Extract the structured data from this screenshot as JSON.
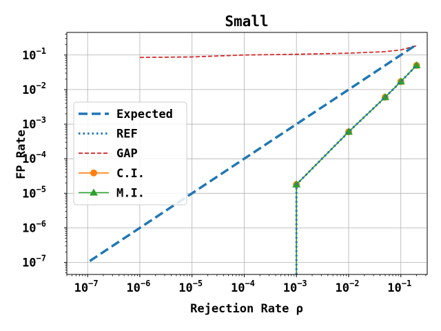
{
  "chart_data": {
    "type": "line",
    "title": "Small",
    "xlabel": "Rejection Rate ρ",
    "ylabel": "FP Rate",
    "xscale": "log",
    "yscale": "log",
    "xlim": [
      4e-08,
      0.32
    ],
    "ylim": [
      4.5e-08,
      0.45
    ],
    "grid": true,
    "legend_position": "center-left",
    "x_ticks": [
      {
        "base": "10",
        "exp": "−7",
        "value": 1e-07
      },
      {
        "base": "10",
        "exp": "−6",
        "value": 1e-06
      },
      {
        "base": "10",
        "exp": "−5",
        "value": 1e-05
      },
      {
        "base": "10",
        "exp": "−4",
        "value": 0.0001
      },
      {
        "base": "10",
        "exp": "−3",
        "value": 0.001
      },
      {
        "base": "10",
        "exp": "−2",
        "value": 0.01
      },
      {
        "base": "10",
        "exp": "−1",
        "value": 0.1
      }
    ],
    "y_ticks": [
      {
        "base": "10",
        "exp": "−7",
        "value": 1e-07
      },
      {
        "base": "10",
        "exp": "−6",
        "value": 1e-06
      },
      {
        "base": "10",
        "exp": "−5",
        "value": 1e-05
      },
      {
        "base": "10",
        "exp": "−4",
        "value": 0.0001
      },
      {
        "base": "10",
        "exp": "−3",
        "value": 0.001
      },
      {
        "base": "10",
        "exp": "−2",
        "value": 0.01
      },
      {
        "base": "10",
        "exp": "−1",
        "value": 0.1
      }
    ],
    "series": [
      {
        "name": "Expected",
        "color": "#1f77b4",
        "style": "dashed-thick",
        "marker": "none",
        "x": [
          1.1e-07,
          0.2
        ],
        "y": [
          1.1e-07,
          0.2
        ]
      },
      {
        "name": "REF",
        "color": "#1f77b4",
        "style": "dotted",
        "marker": "none",
        "x": [
          0.001,
          0.001,
          0.01,
          0.05,
          0.1,
          0.2
        ],
        "y": [
          4.5e-08,
          1.8e-05,
          0.0006,
          0.006,
          0.017,
          0.05
        ]
      },
      {
        "name": "GAP",
        "color": "#d62728",
        "style": "dashed",
        "marker": "none",
        "x": [
          1e-06,
          1e-05,
          0.0001,
          0.001,
          0.01,
          0.05,
          0.1,
          0.2
        ],
        "y": [
          0.085,
          0.088,
          0.1,
          0.105,
          0.113,
          0.125,
          0.14,
          0.185
        ]
      },
      {
        "name": "C.I.",
        "color": "#ff7f0e",
        "style": "solid",
        "marker": "circle",
        "x": [
          0.001,
          0.01,
          0.05,
          0.1,
          0.2
        ],
        "y": [
          1.8e-05,
          0.0006,
          0.006,
          0.017,
          0.05
        ],
        "drop_to_axis_at": 0.001
      },
      {
        "name": "M.I.",
        "color": "#2ca02c",
        "style": "solid",
        "marker": "triangle",
        "x": [
          0.001,
          0.01,
          0.05,
          0.1,
          0.2
        ],
        "y": [
          1.8e-05,
          0.0006,
          0.006,
          0.017,
          0.05
        ],
        "drop_to_axis_at": 0.001
      }
    ]
  }
}
